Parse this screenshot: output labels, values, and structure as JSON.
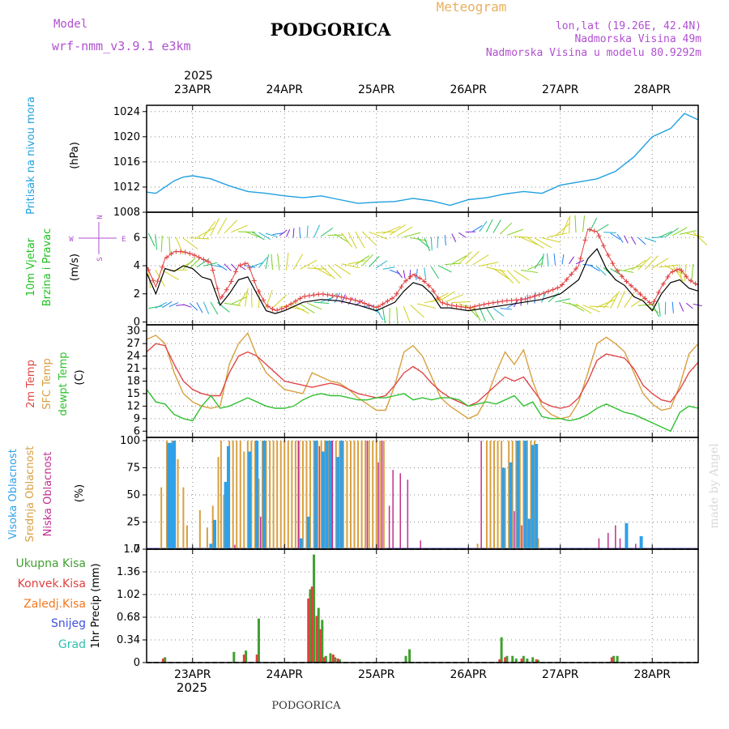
{
  "header": {
    "meteogram": "Meteogram",
    "model_label": "Model",
    "model_value": "wrf-nmm_v3.9.1 e3km",
    "city": "PODGORICA",
    "lonlat": "lon,lat (19.26E, 42.4N)",
    "elevation": "Nadmorska Visina 49m",
    "model_elevation": "Nadmorska Visina u modelu 80.9292m",
    "footer_city": "PODGORICA",
    "credit": "made by Angel"
  },
  "colors": {
    "title_orange": "#e8b060",
    "header_purple": "#b050d0",
    "pressure": "#20a0e0",
    "wind_label": "#20c020",
    "wind_speed": "#000000",
    "wind_gust": "#e04040",
    "temp_2m": "#e04848",
    "temp_sfc": "#d8a040",
    "dewpoint": "#30c030",
    "cloud_high": "#30a0e8",
    "cloud_mid": "#d8a040",
    "cloud_low": "#c03090",
    "precip_total": "#40a030",
    "precip_conv": "#e04040",
    "precip_frz": "#f07820",
    "precip_snow": "#4050e0",
    "precip_hail": "#30c0b0",
    "wind_arrow_palette": [
      "#8020d0",
      "#2080f0",
      "#20b0d0",
      "#20c060",
      "#80d020",
      "#d0d020"
    ]
  },
  "time_axis": {
    "start_day": 22.5,
    "end_day": 28.5,
    "top_year": "2025",
    "bottom_year": "2025",
    "days": [
      {
        "pos": 23,
        "label": "23APR"
      },
      {
        "pos": 24,
        "label": "24APR"
      },
      {
        "pos": 25,
        "label": "25APR"
      },
      {
        "pos": 26,
        "label": "26APR"
      },
      {
        "pos": 27,
        "label": "27APR"
      },
      {
        "pos": 28,
        "label": "28APR"
      }
    ]
  },
  "chart_data": [
    {
      "id": "pressure",
      "type": "line",
      "title": "Pritisak na nivou mora",
      "ylabel": "(hPa)",
      "ylim": [
        1008,
        1025
      ],
      "yticks": [
        1008,
        1012,
        1016,
        1020,
        1024
      ],
      "ytick_labels": [
        "1008",
        "1012",
        "1016",
        "1020",
        "1024"
      ],
      "x": [
        22.5,
        22.6,
        22.7,
        22.8,
        22.9,
        23.0,
        23.2,
        23.4,
        23.6,
        23.8,
        24.0,
        24.2,
        24.4,
        24.6,
        24.8,
        25.0,
        25.2,
        25.4,
        25.6,
        25.8,
        26.0,
        26.2,
        26.4,
        26.6,
        26.8,
        27.0,
        27.2,
        27.4,
        27.6,
        27.8,
        28.0,
        28.2,
        28.35,
        28.5
      ],
      "series": [
        {
          "name": "MSLP",
          "values": [
            1011.2,
            1011.0,
            1012.0,
            1013.0,
            1013.6,
            1013.8,
            1013.3,
            1012.2,
            1011.3,
            1011.0,
            1010.6,
            1010.3,
            1010.6,
            1010.0,
            1009.4,
            1009.6,
            1009.7,
            1010.2,
            1009.8,
            1009.1,
            1010.0,
            1010.3,
            1010.9,
            1011.3,
            1011.0,
            1012.3,
            1012.8,
            1013.3,
            1014.5,
            1016.8,
            1020.0,
            1021.3,
            1023.7,
            1022.7
          ]
        }
      ]
    },
    {
      "id": "wind",
      "type": "line",
      "title": [
        "10m Vjetar",
        "Brzina i Pravac"
      ],
      "ylabel": "(m/s)",
      "ylim": [
        -0.2,
        7.8
      ],
      "yticks": [
        0,
        2,
        4,
        6
      ],
      "ytick_labels": [
        "0",
        "2",
        "4",
        "6"
      ],
      "compass": {
        "north": "N",
        "south": "S",
        "west": "W",
        "east": "E"
      },
      "x": [
        22.5,
        22.6,
        22.7,
        22.8,
        22.9,
        23.0,
        23.1,
        23.2,
        23.3,
        23.4,
        23.5,
        23.6,
        23.7,
        23.8,
        23.9,
        24.0,
        24.2,
        24.4,
        24.6,
        24.8,
        25.0,
        25.2,
        25.3,
        25.4,
        25.5,
        25.6,
        25.7,
        25.8,
        26.0,
        26.2,
        26.4,
        26.6,
        26.8,
        27.0,
        27.2,
        27.3,
        27.4,
        27.5,
        27.6,
        27.7,
        27.8,
        27.9,
        28.0,
        28.1,
        28.2,
        28.3,
        28.4,
        28.5
      ],
      "series": [
        {
          "name": "speed",
          "values": [
            3.5,
            2.0,
            3.8,
            3.6,
            4.0,
            3.8,
            3.2,
            3.0,
            1.2,
            2.0,
            3.0,
            3.2,
            2.0,
            0.8,
            0.6,
            0.8,
            1.4,
            1.6,
            1.5,
            1.2,
            0.8,
            1.4,
            2.2,
            2.8,
            2.6,
            2.0,
            1.0,
            1.0,
            0.8,
            1.0,
            1.2,
            1.4,
            1.6,
            2.0,
            3.0,
            4.5,
            5.2,
            3.8,
            3.0,
            2.6,
            1.8,
            1.5,
            0.8,
            2.0,
            2.8,
            3.0,
            2.4,
            2.2
          ]
        },
        {
          "name": "gust",
          "values": [
            4.0,
            2.5,
            4.5,
            5.0,
            5.0,
            4.8,
            4.5,
            4.2,
            1.6,
            2.6,
            4.0,
            4.2,
            2.4,
            1.2,
            0.8,
            1.0,
            1.8,
            2.0,
            1.8,
            1.5,
            1.0,
            1.8,
            2.8,
            3.4,
            3.0,
            2.4,
            1.4,
            1.2,
            1.0,
            1.3,
            1.5,
            1.6,
            2.0,
            2.5,
            4.0,
            6.6,
            6.4,
            5.0,
            3.8,
            3.0,
            2.4,
            1.8,
            1.2,
            2.5,
            3.5,
            3.8,
            3.0,
            2.6
          ]
        }
      ]
    },
    {
      "id": "temperature",
      "type": "line",
      "title": [
        "2m Temp",
        "SFC Temp",
        "dewpt Temp"
      ],
      "ylabel": "(C)",
      "ylim": [
        4.5,
        31.5
      ],
      "yticks": [
        6,
        9,
        12,
        15,
        18,
        21,
        24,
        27,
        30
      ],
      "ytick_labels": [
        "6",
        "9",
        "12",
        "15",
        "18",
        "21",
        "24",
        "27",
        "30"
      ],
      "x": [
        22.5,
        22.6,
        22.7,
        22.8,
        22.9,
        23.0,
        23.1,
        23.2,
        23.3,
        23.4,
        23.5,
        23.6,
        23.7,
        23.8,
        23.9,
        24.0,
        24.1,
        24.2,
        24.3,
        24.4,
        24.5,
        24.6,
        24.7,
        24.8,
        24.9,
        25.0,
        25.1,
        25.2,
        25.3,
        25.4,
        25.5,
        25.6,
        25.7,
        25.8,
        25.9,
        26.0,
        26.1,
        26.2,
        26.3,
        26.4,
        26.5,
        26.6,
        26.7,
        26.8,
        26.9,
        27.0,
        27.1,
        27.2,
        27.3,
        27.4,
        27.5,
        27.6,
        27.7,
        27.8,
        27.9,
        28.0,
        28.1,
        28.2,
        28.3,
        28.4,
        28.5
      ],
      "series": [
        {
          "name": "2m Temp",
          "values": [
            25,
            27,
            26.5,
            22,
            18,
            16,
            15,
            14.5,
            14.5,
            20,
            24,
            25,
            24,
            22,
            20,
            18,
            17.5,
            17,
            16.5,
            17,
            17.5,
            17,
            16,
            15,
            14.5,
            14,
            14.5,
            17,
            20,
            21.5,
            20,
            17.5,
            15.5,
            14,
            13,
            12,
            13,
            15,
            17,
            19,
            18,
            19,
            16,
            13,
            12,
            11.5,
            12,
            14,
            18,
            23,
            24.5,
            24,
            23.5,
            21,
            17,
            15,
            13.5,
            13,
            16,
            20,
            22.5
          ]
        },
        {
          "name": "SFC Temp",
          "values": [
            28,
            29,
            27,
            20,
            15,
            13,
            12,
            11.5,
            12,
            22,
            27,
            29.5,
            24,
            20,
            18,
            16,
            15.5,
            15,
            20,
            19,
            18,
            17.5,
            16,
            14,
            12.5,
            11,
            11,
            17,
            25,
            26.5,
            24,
            19,
            14,
            12,
            10.5,
            9,
            10,
            14,
            20,
            25,
            22,
            25.5,
            18,
            12,
            10,
            9,
            9.5,
            13,
            20,
            27,
            28.5,
            27,
            25,
            20,
            15,
            12.5,
            11,
            11.5,
            17,
            24.5,
            27
          ]
        },
        {
          "name": "dewpt Temp",
          "values": [
            16,
            13,
            12.5,
            10,
            9,
            8.5,
            12,
            14.5,
            11.5,
            12,
            13,
            14,
            13,
            12,
            11.5,
            11.5,
            12,
            13.5,
            14.5,
            15,
            14.5,
            14.5,
            14,
            13.5,
            13.5,
            14,
            14,
            14.5,
            15,
            13.5,
            14,
            13.5,
            14,
            14,
            13.5,
            12,
            12.5,
            13,
            12.5,
            13.5,
            14.5,
            12,
            13,
            9.5,
            9,
            9,
            8.5,
            9,
            10,
            11.5,
            12.5,
            11.5,
            10.5,
            10,
            9,
            8,
            7,
            6,
            10.5,
            12,
            11.5
          ]
        }
      ]
    },
    {
      "id": "clouds",
      "type": "bar",
      "title": [
        "Visoka Oblacnost",
        "Srednja Oblacnost",
        "Niska Oblacnost"
      ],
      "ylabel": "(%)",
      "ylim": [
        0,
        103
      ],
      "yticks": [
        0,
        25,
        50,
        75,
        100
      ],
      "ytick_labels": [
        "0",
        "25",
        "50",
        "75",
        "100"
      ],
      "series": [
        {
          "name": "Srednja Oblacnost",
          "x": [
            22.66,
            22.72,
            22.75,
            22.78,
            22.81,
            22.84,
            22.9,
            22.94,
            23.08,
            23.16,
            23.22,
            23.28,
            23.31,
            23.34,
            23.4,
            23.44,
            23.48,
            23.52,
            23.56,
            23.6,
            23.64,
            23.68,
            23.72,
            23.76,
            23.8,
            23.84,
            23.88,
            23.92,
            23.96,
            24.0,
            24.04,
            24.08,
            24.12,
            24.16,
            24.2,
            24.24,
            24.28,
            24.32,
            24.36,
            24.4,
            24.44,
            24.48,
            24.52,
            24.56,
            24.6,
            24.64,
            24.68,
            24.72,
            24.76,
            24.8,
            24.84,
            24.88,
            24.92,
            24.96,
            25.0,
            25.04,
            25.08,
            26.1,
            26.2,
            26.24,
            26.28,
            26.32,
            26.36,
            26.4,
            26.44,
            26.48,
            26.52,
            26.56,
            26.6,
            26.64,
            26.68,
            26.72,
            26.76
          ],
          "values": [
            57,
            100,
            95,
            100,
            100,
            83,
            57,
            22,
            36,
            20,
            40,
            85,
            100,
            50,
            100,
            100,
            100,
            100,
            90,
            100,
            100,
            100,
            65,
            100,
            100,
            100,
            100,
            100,
            100,
            100,
            100,
            100,
            100,
            100,
            100,
            100,
            100,
            100,
            100,
            100,
            100,
            100,
            100,
            100,
            100,
            100,
            100,
            100,
            100,
            100,
            100,
            100,
            100,
            100,
            100,
            100,
            100,
            5,
            100,
            100,
            100,
            100,
            100,
            75,
            100,
            100,
            100,
            100,
            100,
            100,
            100,
            100,
            10
          ]
        },
        {
          "name": "Visoka Oblacnost",
          "x": [
            22.74,
            22.77,
            22.8,
            23.2,
            23.24,
            23.36,
            23.39,
            23.62,
            23.7,
            23.78,
            24.18,
            24.26,
            24.34,
            24.42,
            24.46,
            24.5,
            24.58,
            24.62,
            26.38,
            26.46,
            26.54,
            26.62,
            26.66,
            26.7,
            26.74,
            27.72,
            27.88
          ],
          "values": [
            98,
            98,
            100,
            5,
            27,
            62,
            95,
            90,
            100,
            100,
            10,
            30,
            100,
            90,
            100,
            100,
            85,
            100,
            75,
            80,
            100,
            100,
            28,
            96,
            97,
            24,
            12
          ]
        },
        {
          "name": "Niska Oblacnost",
          "x": [
            23.46,
            23.74,
            24.15,
            24.38,
            24.52,
            24.9,
            25.02,
            25.06,
            25.14,
            25.18,
            25.26,
            25.34,
            25.48,
            26.14,
            26.5,
            26.58,
            27.42,
            27.52,
            27.6,
            27.65,
            27.82
          ],
          "values": [
            4,
            30,
            100,
            95,
            100,
            100,
            80,
            100,
            40,
            73,
            70,
            64,
            8,
            100,
            35,
            22,
            10,
            15,
            22,
            10,
            5
          ]
        }
      ]
    },
    {
      "id": "precip",
      "type": "bar",
      "title": [
        "Ukupna Kisa",
        "Konvek.Kisa",
        "Zaledj.Kisa",
        "Snijeg",
        "Grad"
      ],
      "ylabel": "1hr Precip (mm)",
      "ylim": [
        0,
        1.7
      ],
      "yticks": [
        0,
        0.34,
        0.68,
        1.02,
        1.36,
        1.7
      ],
      "ytick_labels": [
        "0",
        "0.34",
        "0.68",
        "1.02",
        "1.36",
        "1.7"
      ],
      "series": [
        {
          "name": "Ukupna Kisa",
          "x": [
            22.7,
            23.45,
            23.58,
            23.72,
            24.28,
            24.32,
            24.37,
            24.41,
            24.45,
            24.5,
            24.55,
            24.6,
            25.32,
            25.36,
            26.36,
            26.42,
            26.48,
            26.52,
            26.6,
            26.64,
            26.7,
            26.76,
            27.58,
            27.62
          ],
          "values": [
            0.08,
            0.16,
            0.18,
            0.66,
            1.1,
            1.62,
            0.82,
            0.64,
            0.1,
            0.14,
            0.08,
            0.05,
            0.1,
            0.2,
            0.38,
            0.1,
            0.1,
            0.06,
            0.1,
            0.06,
            0.08,
            0.04,
            0.1,
            0.1
          ]
        },
        {
          "name": "Konvek.Kisa",
          "x": [
            22.68,
            23.56,
            23.7,
            24.26,
            24.3,
            24.35,
            24.39,
            24.43,
            24.53,
            24.58,
            26.34,
            26.4,
            26.58,
            26.74,
            27.56
          ],
          "values": [
            0.06,
            0.12,
            0.12,
            0.96,
            1.14,
            0.7,
            0.5,
            0.08,
            0.12,
            0.06,
            0.05,
            0.08,
            0.06,
            0.05,
            0.08
          ]
        }
      ]
    }
  ]
}
